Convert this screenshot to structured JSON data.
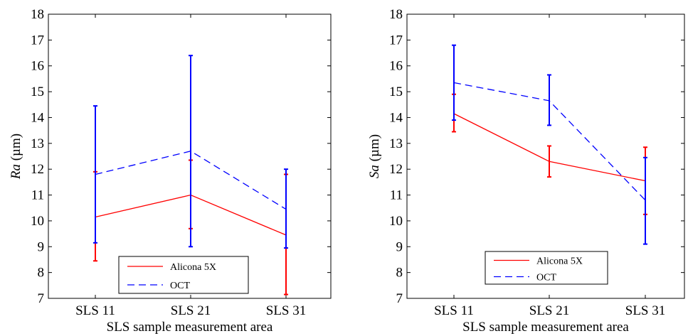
{
  "chart_data": [
    {
      "type": "line",
      "categories": [
        "SLS 11",
        "SLS 21",
        "SLS 31"
      ],
      "xlabel": "SLS sample measurement area",
      "ylabel_italic": "Ra",
      "ylabel_unit": " (µm)",
      "ylim": [
        7,
        18
      ],
      "yticks": [
        "7",
        "8",
        "9",
        "10",
        "11",
        "12",
        "13",
        "14",
        "15",
        "16",
        "17",
        "18"
      ],
      "legend_position": "bottom-center",
      "series": [
        {
          "name": "Alicona 5X",
          "color": "#ff0000",
          "dash": "solid",
          "values": [
            10.15,
            11.0,
            9.45
          ],
          "err_low": [
            8.45,
            9.7,
            7.15
          ],
          "err_high": [
            11.9,
            12.35,
            11.8
          ]
        },
        {
          "name": "OCT",
          "color": "#0000ff",
          "dash": "dashed",
          "values": [
            11.8,
            12.7,
            10.45
          ],
          "err_low": [
            9.15,
            9.0,
            8.95
          ],
          "err_high": [
            14.45,
            16.4,
            12.0
          ]
        }
      ]
    },
    {
      "type": "line",
      "categories": [
        "SLS 11",
        "SLS 21",
        "SLS 31"
      ],
      "xlabel": "SLS sample measurement area",
      "ylabel_italic": "Sa",
      "ylabel_unit": " (µm)",
      "ylim": [
        7,
        18
      ],
      "yticks": [
        "7",
        "8",
        "9",
        "10",
        "11",
        "12",
        "13",
        "14",
        "15",
        "16",
        "17",
        "18"
      ],
      "legend_position": "bottom-center",
      "series": [
        {
          "name": "Alicona 5X",
          "color": "#ff0000",
          "dash": "solid",
          "values": [
            14.15,
            12.3,
            11.55
          ],
          "err_low": [
            13.45,
            11.7,
            10.25
          ],
          "err_high": [
            14.9,
            12.9,
            12.85
          ]
        },
        {
          "name": "OCT",
          "color": "#0000ff",
          "dash": "dashed",
          "values": [
            15.35,
            14.65,
            10.8
          ],
          "err_low": [
            13.9,
            13.7,
            9.1
          ],
          "err_high": [
            16.8,
            15.65,
            12.45
          ]
        }
      ]
    }
  ]
}
